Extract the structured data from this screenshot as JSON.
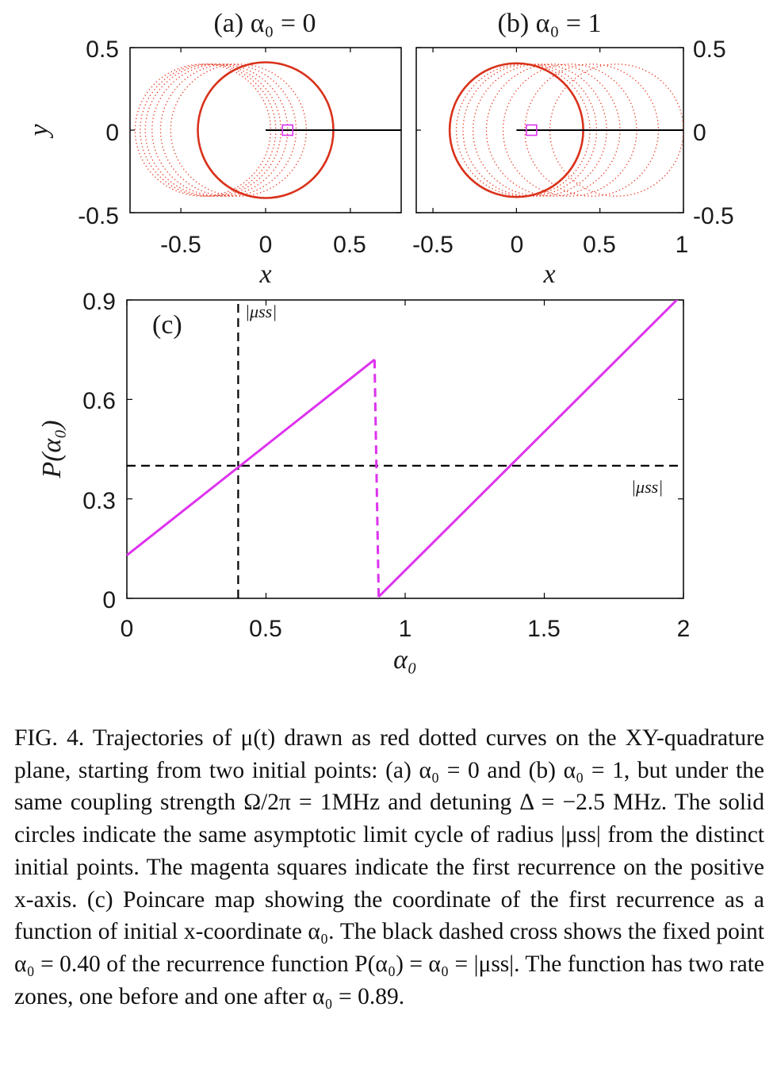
{
  "colors": {
    "trajectory": "#e8341c",
    "limit_cycle": "#d9321b",
    "recurrence_map": "#dd33ee",
    "fixed_point_cross": "#000000",
    "axes": "#000000"
  },
  "chart_data": [
    {
      "type": "line",
      "panel": "(a)",
      "title": "(a) α₀ = 0",
      "xlabel": "x",
      "ylabel": "y",
      "xlim": [
        -0.8,
        0.8
      ],
      "ylim": [
        -0.5,
        0.5
      ],
      "xticks": [
        -0.5,
        0,
        0.5
      ],
      "xtick_labels": [
        "-0.5",
        "0",
        "0.5"
      ],
      "yticks": [
        0.5,
        0,
        -0.5
      ],
      "ytick_labels": [
        "0.5",
        "0",
        "-0.5"
      ],
      "initial_point": [
        0,
        0
      ],
      "limit_cycle": {
        "center": [
          0,
          0
        ],
        "radius": 0.4
      },
      "trajectory_circles": [
        {
          "center": [
            -0.16,
            0
          ],
          "radius": 0.4
        },
        {
          "center": [
            -0.22,
            0
          ],
          "radius": 0.4
        },
        {
          "center": [
            -0.27,
            0
          ],
          "radius": 0.4
        },
        {
          "center": [
            -0.31,
            0
          ],
          "radius": 0.4
        },
        {
          "center": [
            -0.34,
            0
          ],
          "radius": 0.4
        },
        {
          "center": [
            -0.37,
            0
          ],
          "radius": 0.4
        }
      ],
      "positive_x_axis": [
        0,
        0.8
      ],
      "first_recurrence": [
        0.13,
        0
      ]
    },
    {
      "type": "line",
      "panel": "(b)",
      "title": "(b) α₀ = 1",
      "xlabel": "x",
      "ylabel": "",
      "xlim": [
        -0.6,
        1.0
      ],
      "ylim": [
        -0.5,
        0.5
      ],
      "xticks": [
        -0.5,
        0,
        0.5,
        1
      ],
      "xtick_labels": [
        "-0.5",
        "0",
        "0.5",
        "1"
      ],
      "yticks": [
        0.5,
        0,
        -0.5
      ],
      "ytick_labels": [
        "0.5",
        "0",
        "-0.5"
      ],
      "initial_point": [
        1,
        0
      ],
      "limit_cycle": {
        "center": [
          0,
          0
        ],
        "radius": 0.4
      },
      "trajectory_circles": [
        {
          "center": [
            0.6,
            0
          ],
          "radius": 0.4
        },
        {
          "center": [
            0.45,
            0
          ],
          "radius": 0.4
        },
        {
          "center": [
            0.32,
            0
          ],
          "radius": 0.4
        },
        {
          "center": [
            0.22,
            0
          ],
          "radius": 0.4
        },
        {
          "center": [
            0.14,
            0
          ],
          "radius": 0.4
        },
        {
          "center": [
            0.08,
            0
          ],
          "radius": 0.4
        },
        {
          "center": [
            0.04,
            0
          ],
          "radius": 0.4
        }
      ],
      "positive_x_axis": [
        0,
        1.0
      ],
      "first_recurrence": [
        0.09,
        0
      ]
    },
    {
      "type": "line",
      "panel": "(c)",
      "title": "",
      "panel_label": "(c)",
      "xlabel": "α₀",
      "ylabel": "P(α₀)",
      "xlim": [
        0,
        2
      ],
      "ylim": [
        0,
        0.9
      ],
      "xticks": [
        0,
        0.5,
        1,
        1.5,
        2
      ],
      "xtick_labels": [
        "0",
        "0.5",
        "1",
        "1.5",
        "2"
      ],
      "yticks": [
        0.9,
        0.6,
        0.3,
        0
      ],
      "ytick_labels": [
        "0.9",
        "0.6",
        "0.3",
        "0"
      ],
      "series": [
        {
          "x": [
            0,
            0.89
          ],
          "y": [
            0.13,
            0.72
          ]
        },
        {
          "x": [
            0.905,
            2
          ],
          "y": [
            0.005,
            0.92
          ]
        }
      ],
      "jump": {
        "x": 0.89,
        "y_from": 0.72,
        "y_to": 0.0
      },
      "fixed_point": {
        "alpha0": 0.4,
        "P": 0.4
      },
      "cross_labels": {
        "vertical": "|μss|",
        "horizontal": "|μss|"
      }
    }
  ],
  "caption": {
    "text": "FIG. 4. Trajectories of μ(t) drawn as red dotted curves on the XY-quadrature plane, starting from two initial points: (a) α₀ = 0 and (b) α₀ = 1, but under the same coupling strength Ω/2π = 1MHz and detuning Δ = −2.5 MHz. The solid circles indicate the same asymptotic limit cycle of radius |μss| from the distinct initial points. The magenta squares indicate the first recurrence on the positive x-axis. (c) Poincare map showing the coordinate of the first recurrence as a function of initial x-coordinate α₀. The black dashed cross shows the fixed point α₀ = 0.40 of the recurrence function P(α₀) = α₀ = |μss|. The function has two rate zones, one before and one after α₀ = 0.89."
  }
}
